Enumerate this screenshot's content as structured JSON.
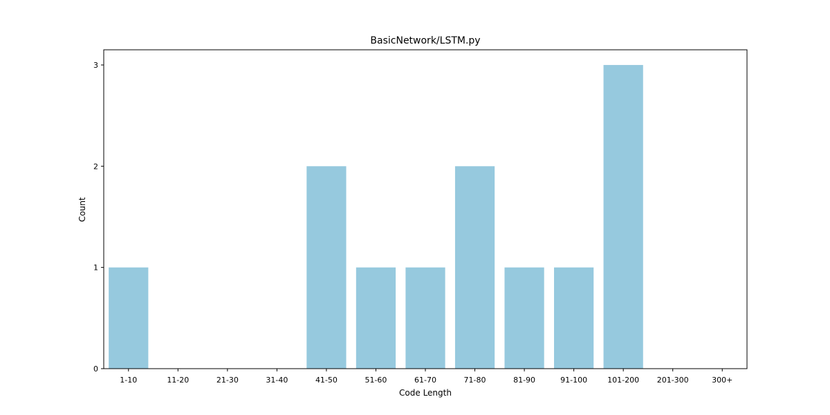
{
  "chart_data": {
    "type": "bar",
    "title": "BasicNetwork/LSTM.py",
    "xlabel": "Code Length",
    "ylabel": "Count",
    "categories": [
      "1-10",
      "11-20",
      "21-30",
      "31-40",
      "41-50",
      "51-60",
      "61-70",
      "71-80",
      "81-90",
      "91-100",
      "101-200",
      "201-300",
      "300+"
    ],
    "values": [
      1,
      0,
      0,
      0,
      2,
      1,
      1,
      2,
      1,
      1,
      3,
      0,
      0
    ],
    "ylim": [
      0,
      3.15
    ],
    "yticks": [
      "0",
      "1",
      "2",
      "3"
    ],
    "grid": false,
    "legend": "none",
    "bar_color": "#96c9de"
  }
}
